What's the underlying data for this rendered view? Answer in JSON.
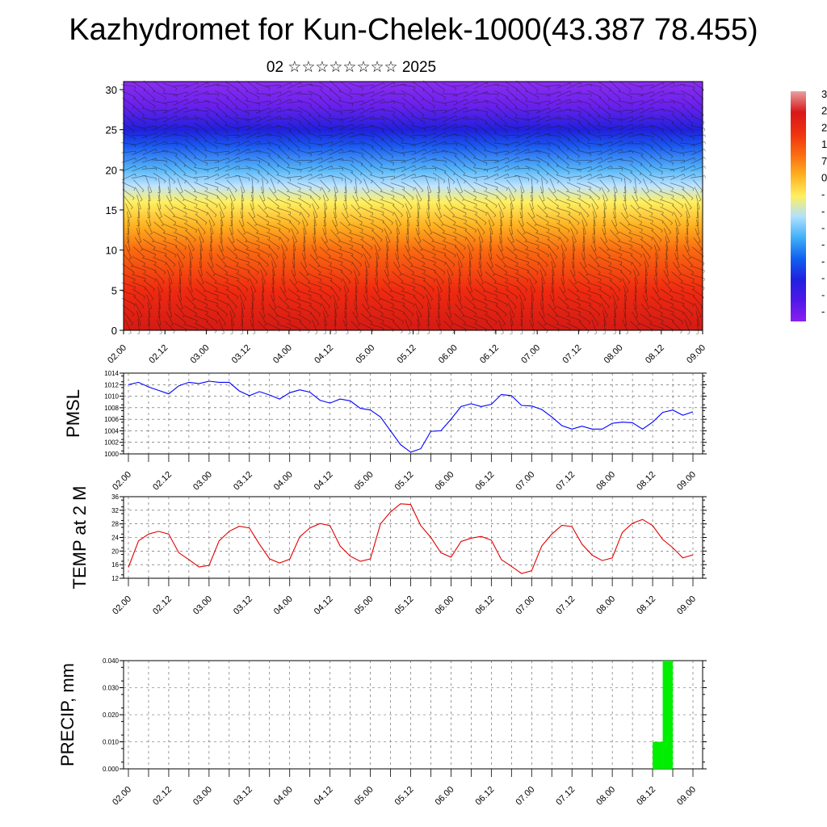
{
  "title": "Kazhydromet for Kun-Chelek-1000(43.387 78.455)",
  "subtitle": "02 ☆☆☆☆☆☆☆☆ 2025",
  "time_ticks": [
    "02.00",
    "02.12",
    "03.00",
    "03.12",
    "04.00",
    "04.12",
    "05.00",
    "05.12",
    "06.00",
    "06.12",
    "07.00",
    "07.12",
    "08.00",
    "08.12",
    "09.00"
  ],
  "colorbar": {
    "labels": [
      "3",
      "2",
      "2",
      "1",
      "7",
      "0",
      "-",
      "-",
      "-",
      "-",
      "-",
      "-",
      "-",
      "-"
    ],
    "stops": [
      "#e8a0a0",
      "#d81818",
      "#f03010",
      "#fa6a10",
      "#ffb020",
      "#fff060",
      "#b0e0ff",
      "#40b0f8",
      "#1060f0",
      "#2020e0",
      "#5018e8",
      "#8a20f0"
    ]
  },
  "chart_data": [
    {
      "type": "heatmap",
      "name": "cross-section",
      "xlabel": "",
      "ylabel": "",
      "x": [
        "02.00",
        "09.00"
      ],
      "ylim": [
        0,
        31
      ],
      "yticks": [
        0,
        5,
        10,
        15,
        20,
        25,
        30
      ],
      "color_bands": [
        {
          "y": 0,
          "color": "#d41a14"
        },
        {
          "y": 5,
          "color": "#f02a10"
        },
        {
          "y": 10,
          "color": "#fa6a10"
        },
        {
          "y": 13,
          "color": "#ffb020"
        },
        {
          "y": 16,
          "color": "#fff060"
        },
        {
          "y": 18,
          "color": "#bfe3ff"
        },
        {
          "y": 20,
          "color": "#58b8f8"
        },
        {
          "y": 23,
          "color": "#1a58f0"
        },
        {
          "y": 25,
          "color": "#2020dc"
        },
        {
          "y": 28,
          "color": "#6a20ec"
        },
        {
          "y": 31,
          "color": "#8a2ef0"
        }
      ],
      "grid": false
    },
    {
      "type": "line",
      "name": "PMSL",
      "ylabel": "PMSL",
      "ylim": [
        1000,
        1014
      ],
      "yticks": [
        "1000",
        "1002",
        "1004",
        "1006",
        "1008",
        "1010",
        "1012",
        "1014"
      ],
      "color": "#0000ff",
      "grid": true,
      "x_range": [
        0,
        168
      ],
      "step_hours": 3,
      "values": [
        1012.0,
        1012.4,
        1011.6,
        1011.0,
        1010.4,
        1011.8,
        1012.4,
        1012.2,
        1012.6,
        1012.4,
        1012.4,
        1010.9,
        1010.1,
        1010.8,
        1010.2,
        1009.5,
        1010.6,
        1011.1,
        1010.7,
        1009.3,
        1008.8,
        1009.5,
        1009.2,
        1007.9,
        1007.6,
        1006.4,
        1004.0,
        1001.6,
        1000.3,
        1000.9,
        1003.9,
        1004.0,
        1006.0,
        1008.2,
        1008.7,
        1008.2,
        1008.6,
        1010.3,
        1010.1,
        1008.4,
        1008.3,
        1007.7,
        1006.4,
        1004.9,
        1004.3,
        1004.8,
        1004.3,
        1004.3,
        1005.3,
        1005.5,
        1005.4,
        1004.3,
        1005.5,
        1007.2,
        1007.6,
        1006.7,
        1007.3
      ]
    },
    {
      "type": "line",
      "name": "TEMP at 2 M",
      "ylabel": "TEMP at 2 M",
      "ylim": [
        12,
        36
      ],
      "yticks": [
        "12",
        "16",
        "20",
        "24",
        "28",
        "32",
        "36"
      ],
      "color": "#e00000",
      "grid": true,
      "x_range": [
        0,
        168
      ],
      "step_hours": 3,
      "values": [
        15.2,
        23.0,
        25.0,
        25.8,
        25.0,
        19.5,
        17.5,
        15.3,
        15.8,
        23.0,
        25.8,
        27.3,
        26.8,
        22.0,
        17.7,
        16.5,
        17.6,
        24.2,
        26.8,
        28.1,
        27.5,
        21.5,
        18.5,
        17.0,
        17.7,
        28.0,
        31.5,
        33.9,
        33.7,
        27.5,
        24.0,
        19.5,
        18.2,
        22.8,
        23.8,
        24.3,
        23.2,
        17.5,
        15.5,
        13.4,
        14.2,
        21.5,
        25.0,
        27.6,
        27.2,
        22.0,
        18.8,
        17.2,
        18.0,
        25.5,
        28.2,
        29.3,
        27.5,
        23.4,
        21.0,
        18.0,
        18.9
      ]
    },
    {
      "type": "bar",
      "name": "PRECIP",
      "ylabel": "PRECIP, mm",
      "ylim": [
        0,
        0.04
      ],
      "yticks": [
        "0.000",
        "0.010",
        "0.020",
        "0.030",
        "0.040"
      ],
      "color": "#00ee00",
      "grid": true,
      "x_range": [
        0,
        168
      ],
      "bars": [
        {
          "x_start": 156,
          "x_end": 159,
          "value": 0.01
        },
        {
          "x_start": 159,
          "x_end": 162,
          "value": 0.04
        }
      ]
    }
  ]
}
